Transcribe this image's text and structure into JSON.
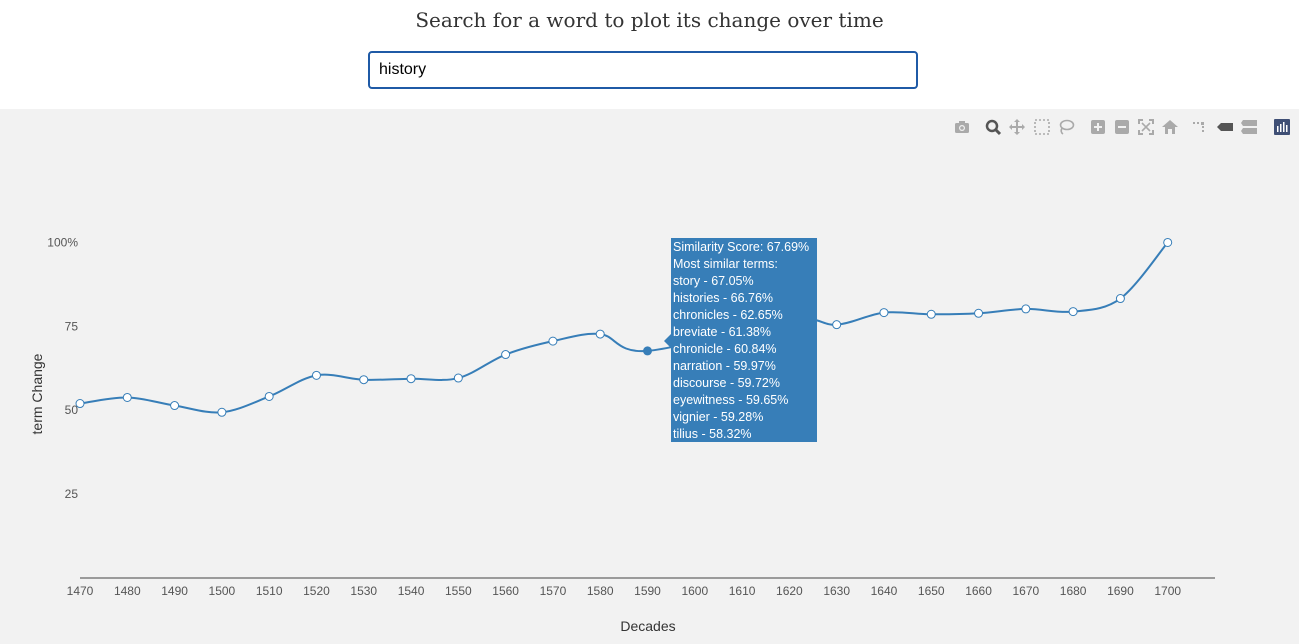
{
  "page": {
    "heading": "Search for a word to plot its change over time"
  },
  "search": {
    "value": "history"
  },
  "modebar": {
    "icons": [
      "camera-icon",
      "zoom-icon",
      "pan-icon",
      "box-select-icon",
      "lasso-icon",
      "zoom-in-icon",
      "zoom-out-icon",
      "autoscale-icon",
      "home-icon",
      "spike-lines-icon",
      "hover-closest-icon",
      "hover-compare-icon",
      "plotly-logo-icon"
    ],
    "icon_color": "#aaaaaa",
    "active_color": "#555555",
    "logo_color": "#3f4f75"
  },
  "chart_data": {
    "type": "line",
    "title": "",
    "xlabel": "Decades",
    "ylabel": "term Change",
    "x": [
      1470,
      1480,
      1490,
      1500,
      1510,
      1520,
      1530,
      1540,
      1550,
      1560,
      1570,
      1580,
      1590,
      1600,
      1610,
      1620,
      1630,
      1640,
      1650,
      1660,
      1670,
      1680,
      1690,
      1700
    ],
    "y": [
      52.0,
      53.8,
      51.4,
      49.4,
      54.1,
      60.4,
      59.1,
      59.4,
      59.6,
      66.6,
      70.6,
      72.7,
      67.69,
      null,
      null,
      77.0,
      75.5,
      79.1,
      78.6,
      78.9,
      80.2,
      79.4,
      83.3,
      100.0
    ],
    "xlim": [
      1470,
      1710
    ],
    "ylim": [
      0,
      107
    ],
    "ytick_values": [
      25,
      50,
      75,
      100
    ],
    "ytick_labels": [
      "25",
      "50",
      "75",
      "100%"
    ],
    "xtick_labels": [
      "1470",
      "1480",
      "1490",
      "1500",
      "1510",
      "1520",
      "1530",
      "1540",
      "1550",
      "1560",
      "1570",
      "1580",
      "1590",
      "1600",
      "1610",
      "1620",
      "1630",
      "1640",
      "1650",
      "1660",
      "1670",
      "1680",
      "1690",
      "1700"
    ],
    "line_color": "#377eb8",
    "hover": {
      "x": 1590,
      "lines": [
        "Similarity Score: 67.69%",
        "Most similar terms:",
        "story - 67.05%",
        "histories - 66.76%",
        "chronicles - 62.65%",
        "breviate - 61.38%",
        "chronicle - 60.84%",
        "narration - 59.97%",
        "discourse - 59.72%",
        "eyewitness - 59.65%",
        "vignier - 59.28%",
        "tilius - 58.32%"
      ]
    }
  }
}
